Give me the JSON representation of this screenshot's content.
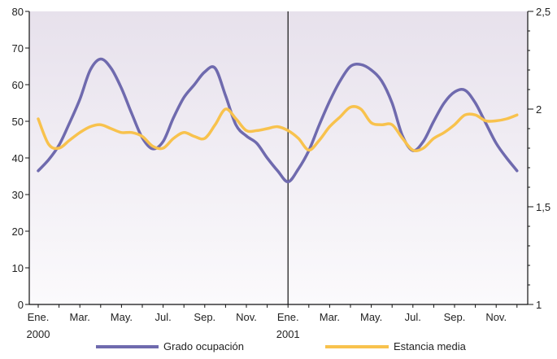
{
  "chart_data": {
    "type": "line",
    "title": "",
    "xlabel": "",
    "ylabel": "",
    "x_tick_labels": [
      "Ene.",
      "Mar.",
      "May.",
      "Jul.",
      "Sep.",
      "Nov.",
      "Ene.",
      "Mar.",
      "May.",
      "Jul.",
      "Sep.",
      "Nov."
    ],
    "year_labels": [
      "2000",
      "2001"
    ],
    "y_left": {
      "min": 0,
      "max": 80,
      "ticks": [
        "0",
        "10",
        "20",
        "30",
        "40",
        "50",
        "60",
        "70",
        "80"
      ]
    },
    "y_right": {
      "min": 1,
      "max": 2.5,
      "ticks": [
        "1",
        "1,5",
        "2",
        "2,5"
      ]
    },
    "divider_at_month": 12,
    "legend_placement": "bottom",
    "series": [
      {
        "name": "Grado  ocupación",
        "axis": "left",
        "color": "#6f6aae",
        "x": [
          0,
          0.5,
          1,
          1.5,
          2,
          2.5,
          3,
          3.5,
          4,
          4.5,
          5,
          5.5,
          6,
          6.5,
          7,
          7.5,
          8,
          8.5,
          9,
          9.5,
          10,
          10.5,
          11,
          11.5,
          12,
          12.5,
          13,
          13.5,
          14,
          14.5,
          15,
          15.5,
          16,
          16.5,
          17,
          17.5,
          18,
          18.5,
          19,
          19.5,
          20,
          20.5,
          21,
          21.5,
          22,
          22.5,
          23
        ],
        "values": [
          36.5,
          39.5,
          43.5,
          49.5,
          56,
          64,
          67,
          64.5,
          59,
          52,
          45.5,
          42.5,
          44.5,
          51,
          56.5,
          60,
          63.5,
          64.5,
          57,
          49,
          46,
          44,
          40,
          36.5,
          33.5,
          37,
          42,
          49,
          55.5,
          61,
          65,
          65.5,
          64,
          61,
          55,
          46,
          42,
          44.5,
          50,
          55,
          58,
          58.5,
          55,
          49.5,
          44,
          40,
          36.5
        ]
      },
      {
        "name": "Estancia media",
        "axis": "right",
        "color": "#f8c24d",
        "x": [
          0,
          0.5,
          1,
          1.5,
          2,
          2.5,
          3,
          3.5,
          4,
          4.5,
          5,
          5.5,
          6,
          6.5,
          7,
          7.5,
          8,
          8.5,
          9,
          9.5,
          10,
          10.5,
          11,
          11.5,
          12,
          12.5,
          13,
          13.5,
          14,
          14.5,
          15,
          15.5,
          16,
          16.5,
          17,
          17.5,
          18,
          18.5,
          19,
          19.5,
          20,
          20.5,
          21,
          21.5,
          22,
          22.5,
          23
        ],
        "values": [
          1.95,
          1.82,
          1.8,
          1.84,
          1.88,
          1.91,
          1.92,
          1.9,
          1.88,
          1.88,
          1.86,
          1.81,
          1.8,
          1.85,
          1.88,
          1.86,
          1.85,
          1.92,
          2.0,
          1.95,
          1.89,
          1.89,
          1.9,
          1.91,
          1.89,
          1.85,
          1.79,
          1.84,
          1.91,
          1.96,
          2.01,
          2.0,
          1.93,
          1.92,
          1.92,
          1.85,
          1.79,
          1.8,
          1.85,
          1.88,
          1.92,
          1.97,
          1.97,
          1.94,
          1.94,
          1.95,
          1.97
        ]
      }
    ]
  }
}
